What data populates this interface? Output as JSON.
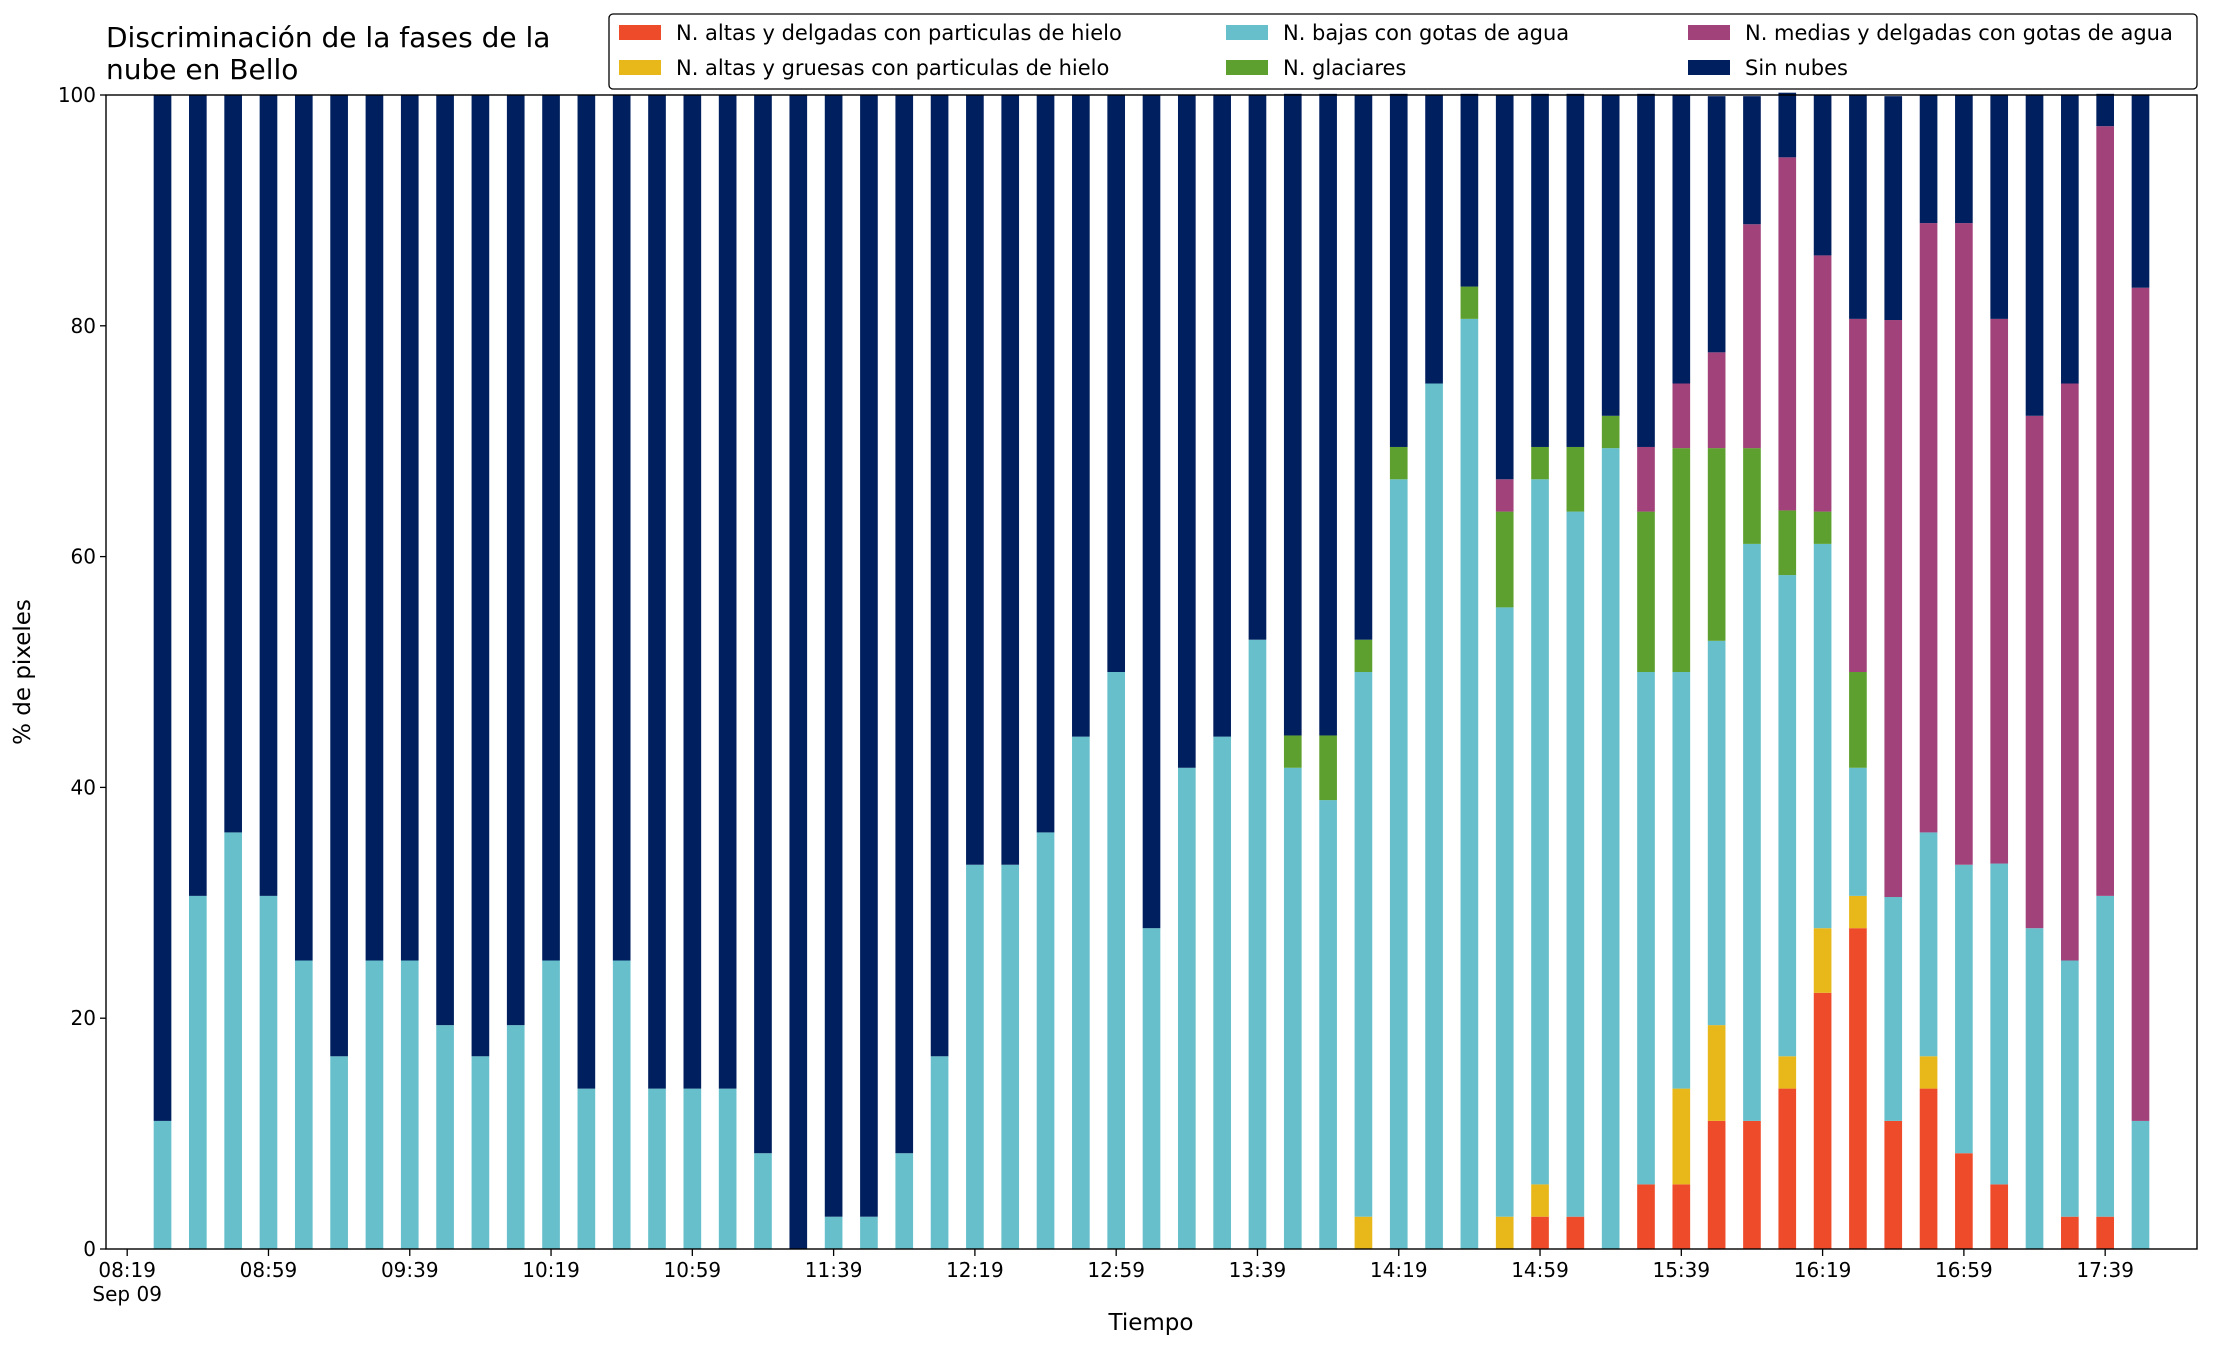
{
  "chart_data": {
    "type": "stacked_bar",
    "title": "Discriminación de la fases de la nube en Bello",
    "xlabel": "Tiempo",
    "ylabel": "% de pixeles",
    "x": [
      "08:29",
      "08:39",
      "08:49",
      "08:59",
      "09:09",
      "09:19",
      "09:29",
      "09:39",
      "09:49",
      "09:59",
      "10:09",
      "10:19",
      "10:29",
      "10:39",
      "10:49",
      "10:59",
      "11:09",
      "11:19",
      "11:29",
      "11:39",
      "11:49",
      "11:59",
      "12:09",
      "12:19",
      "12:29",
      "12:39",
      "12:49",
      "12:59",
      "13:09",
      "13:19",
      "13:29",
      "13:39",
      "13:49",
      "13:59",
      "14:09",
      "14:19",
      "14:29",
      "14:39",
      "14:49",
      "14:59",
      "15:09",
      "15:19",
      "15:29",
      "15:39",
      "15:49",
      "15:59",
      "16:09",
      "16:19",
      "16:29",
      "16:39",
      "16:49",
      "16:59",
      "17:09",
      "17:19",
      "17:29",
      "17:39",
      "17:49"
    ],
    "series": [
      {
        "name": "N. altas y delgadas con particulas de hielo",
        "color": "#ee4b2b",
        "values": [
          0,
          0,
          0,
          0,
          0,
          0,
          0,
          0,
          0,
          0,
          0,
          0,
          0,
          0,
          0,
          0,
          0,
          0,
          0,
          0,
          0,
          0,
          0,
          0,
          0,
          0,
          0,
          0,
          0,
          0,
          0,
          0,
          0,
          0,
          0,
          0,
          0,
          0,
          0,
          2.8,
          2.8,
          0,
          5.6,
          5.6,
          11.1,
          11.1,
          13.9,
          22.2,
          27.8,
          11.1,
          13.9,
          8.3,
          5.6,
          0,
          2.8,
          2.8,
          0
        ]
      },
      {
        "name": "N. altas y gruesas con particulas de hielo",
        "color": "#e8b71a",
        "values": [
          0,
          0,
          0,
          0,
          0,
          0,
          0,
          0,
          0,
          0,
          0,
          0,
          0,
          0,
          0,
          0,
          0,
          0,
          0,
          0,
          0,
          0,
          0,
          0,
          0,
          0,
          0,
          0,
          0,
          0,
          0,
          0,
          0,
          0,
          2.8,
          0,
          0,
          0,
          2.8,
          2.8,
          0,
          0,
          0,
          8.3,
          8.3,
          0,
          2.8,
          5.6,
          2.8,
          0,
          2.8,
          0,
          0,
          0,
          0,
          0,
          0
        ]
      },
      {
        "name": "N. bajas con gotas de agua",
        "color": "#66bfca",
        "values": [
          11.1,
          30.6,
          36.1,
          30.6,
          25,
          16.7,
          25,
          25,
          19.4,
          16.7,
          19.4,
          25,
          13.9,
          25,
          13.9,
          13.9,
          13.9,
          8.3,
          0,
          2.8,
          2.8,
          8.3,
          16.7,
          33.3,
          33.3,
          36.1,
          44.4,
          50,
          27.8,
          41.7,
          44.4,
          52.8,
          41.7,
          38.9,
          47.2,
          66.7,
          75,
          80.6,
          52.8,
          61.1,
          61.1,
          69.4,
          44.4,
          36.1,
          33.3,
          50,
          41.7,
          33.3,
          11.1,
          19.4,
          19.4,
          25,
          27.8,
          27.8,
          22.2,
          27.8,
          11.1
        ]
      },
      {
        "name": "N. glaciares",
        "color": "#5ea02f",
        "values": [
          0,
          0,
          0,
          0,
          0,
          0,
          0,
          0,
          0,
          0,
          0,
          0,
          0,
          0,
          0,
          0,
          0,
          0,
          0,
          0,
          0,
          0,
          0,
          0,
          0,
          0,
          0,
          0,
          0,
          0,
          0,
          0,
          2.8,
          5.6,
          2.8,
          2.8,
          0,
          2.8,
          8.3,
          2.8,
          5.6,
          2.8,
          13.9,
          19.4,
          16.7,
          8.3,
          5.6,
          2.8,
          8.3,
          0,
          0,
          0,
          0,
          0,
          0,
          0,
          0
        ]
      },
      {
        "name": "N. medias y delgadas con gotas de agua",
        "color": "#a1427a",
        "values": [
          0,
          0,
          0,
          0,
          0,
          0,
          0,
          0,
          0,
          0,
          0,
          0,
          0,
          0,
          0,
          0,
          0,
          0,
          0,
          0,
          0,
          0,
          0,
          0,
          0,
          0,
          0,
          0,
          0,
          0,
          0,
          0,
          0,
          0,
          0,
          0,
          0,
          0,
          2.8,
          0,
          0,
          0,
          5.6,
          5.6,
          8.3,
          19.4,
          30.6,
          22.2,
          30.6,
          50,
          52.8,
          55.6,
          47.2,
          44.4,
          50,
          66.7,
          72.2
        ]
      },
      {
        "name": "Sin nubes",
        "color": "#001f5f",
        "values": [
          88.9,
          69.4,
          63.9,
          69.4,
          75,
          83.3,
          75,
          75,
          80.6,
          83.3,
          80.6,
          75,
          86.1,
          75,
          86.1,
          86.1,
          86.1,
          91.7,
          100,
          97.2,
          97.2,
          91.7,
          83.3,
          66.7,
          66.7,
          63.9,
          55.6,
          50,
          72.2,
          58.3,
          55.6,
          47.2,
          55.6,
          55.6,
          47.2,
          30.6,
          25,
          16.7,
          33.3,
          30.6,
          30.6,
          27.8,
          30.6,
          25,
          22.2,
          11.1,
          5.6,
          13.9,
          19.4,
          19.4,
          11.1,
          11.1,
          19.4,
          27.8,
          25,
          2.8,
          16.7
        ]
      }
    ],
    "xlim": [
      "08:13",
      "18:05"
    ],
    "xticks": [
      "08:19",
      "08:59",
      "09:39",
      "10:19",
      "10:59",
      "11:39",
      "12:19",
      "12:59",
      "13:39",
      "14:19",
      "14:59",
      "15:39",
      "16:19",
      "16:59",
      "17:39"
    ],
    "date_label": "Sep 09",
    "ylim": [
      0,
      100
    ],
    "yticks": [
      0,
      20,
      40,
      60,
      80,
      100
    ],
    "grid": false,
    "legend": "upper right"
  }
}
